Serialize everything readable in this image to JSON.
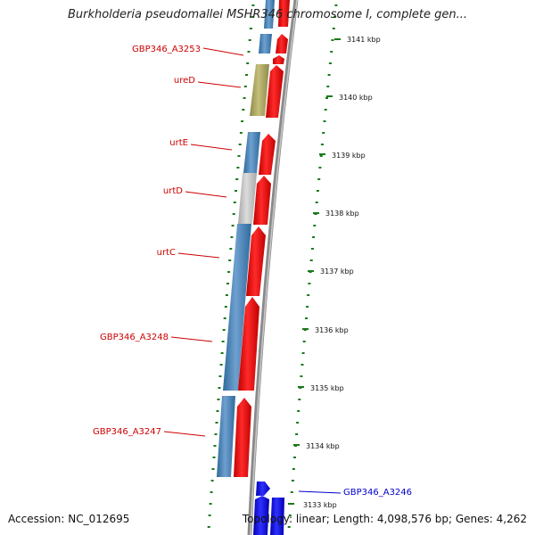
{
  "title": "Burkholderia pseudomallei MSHR346 chromosome I, complete gen...",
  "footer": {
    "accession": "Accession: NC_012695",
    "summary": "Topology: linear; Length: 4,098,576 bp; Genes: 4,262"
  },
  "scale_labels": [
    "3141 kbp",
    "3140 kbp",
    "3139 kbp",
    "3138 kbp",
    "3137 kbp",
    "3136 kbp",
    "3135 kbp",
    "3134 kbp",
    "3133 kbp"
  ],
  "gene_labels": [
    {
      "name": "GBP346_A3253",
      "color": "#cc0000"
    },
    {
      "name": "ureD",
      "color": "#cc0000"
    },
    {
      "name": "urtE",
      "color": "#cc0000"
    },
    {
      "name": "urtD",
      "color": "#cc0000"
    },
    {
      "name": "urtC",
      "color": "#cc0000"
    },
    {
      "name": "GBP346_A3248",
      "color": "#cc0000"
    },
    {
      "name": "GBP346_A3247",
      "color": "#cc0000"
    },
    {
      "name": "GBP346_A3246",
      "color": "#0000cc"
    }
  ],
  "colors": {
    "cds": "#ff0000",
    "gene": "#4682b4",
    "gene_special": "#bdb76b",
    "gene_grey": "#c0c0c0",
    "cds_blue": "#0000ff",
    "backbone": "#888888",
    "ticks": "#228b22"
  }
}
